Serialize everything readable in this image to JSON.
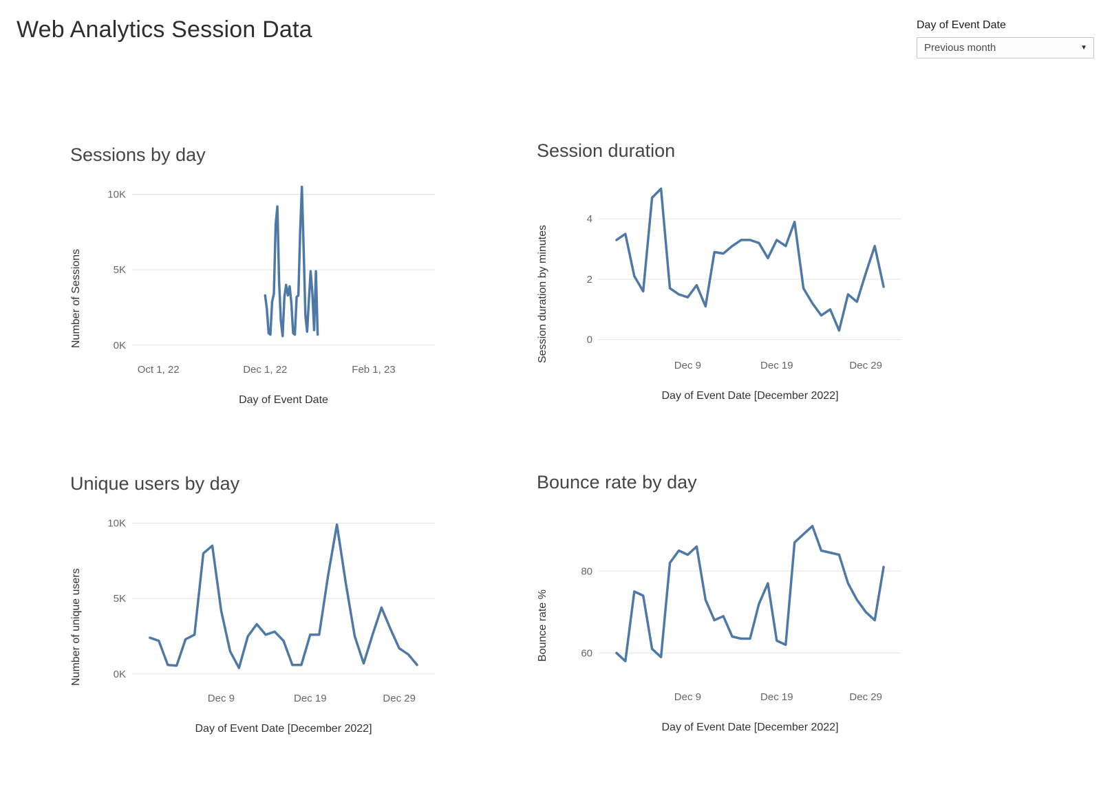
{
  "page": {
    "title": "Web Analytics Session Data"
  },
  "filter": {
    "label": "Day of Event Date",
    "value": "Previous month",
    "caret": "▼"
  },
  "chart_data": [
    {
      "type": "line",
      "title": "Sessions by day",
      "xlabel": "Day of Event Date",
      "ylabel": "Number of Sessions",
      "line_color": "#4e79a7",
      "grid": "horizontal",
      "xlim": [
        -15,
        158
      ],
      "ylim": [
        -600,
        10800
      ],
      "yticks": [
        {
          "v": 0,
          "label": "0K"
        },
        {
          "v": 5000,
          "label": "5K"
        },
        {
          "v": 10000,
          "label": "10K"
        }
      ],
      "xticks": [
        {
          "v": 0,
          "label": "Oct 1, 22"
        },
        {
          "v": 61,
          "label": "Dec 1, 22"
        },
        {
          "v": 123,
          "label": "Feb 1, 23"
        }
      ],
      "x": [
        61,
        62,
        63,
        64,
        65,
        66,
        67,
        68,
        69,
        70,
        71,
        72,
        73,
        74,
        75,
        76,
        77,
        78,
        79,
        80,
        81,
        82,
        83,
        84,
        85,
        86,
        87,
        88,
        89,
        90,
        91
      ],
      "values": [
        3300,
        2400,
        800,
        700,
        2900,
        3400,
        8000,
        9200,
        4200,
        1600,
        600,
        3200,
        4000,
        3300,
        3900,
        2800,
        800,
        700,
        3200,
        3300,
        7500,
        10500,
        6500,
        2000,
        900,
        3000,
        4900,
        3400,
        1000,
        4900,
        700
      ]
    },
    {
      "type": "line",
      "title": "Session duration",
      "xlabel": "Day of Event Date [December 2022]",
      "ylabel": "Session duration by minutes",
      "line_color": "#4e79a7",
      "grid": "horizontal",
      "xlim": [
        -1,
        33
      ],
      "ylim": [
        -0.35,
        5.35
      ],
      "yticks": [
        {
          "v": 0,
          "label": "0"
        },
        {
          "v": 2,
          "label": "2"
        },
        {
          "v": 4,
          "label": "4"
        }
      ],
      "xticks": [
        {
          "v": 9,
          "label": "Dec 9"
        },
        {
          "v": 19,
          "label": "Dec 19"
        },
        {
          "v": 29,
          "label": "Dec 29"
        }
      ],
      "x": [
        1,
        2,
        3,
        4,
        5,
        6,
        7,
        8,
        9,
        10,
        11,
        12,
        13,
        14,
        15,
        16,
        17,
        18,
        19,
        20,
        21,
        22,
        23,
        24,
        25,
        26,
        27,
        28,
        29,
        30,
        31
      ],
      "values": [
        3.3,
        3.5,
        2.1,
        1.6,
        4.7,
        5.0,
        1.7,
        1.5,
        1.4,
        1.8,
        1.1,
        2.9,
        2.85,
        3.1,
        3.3,
        3.3,
        3.2,
        2.7,
        3.3,
        3.1,
        3.9,
        1.7,
        1.2,
        0.8,
        1.0,
        0.3,
        1.5,
        1.25,
        2.2,
        3.1,
        1.75
      ]
    },
    {
      "type": "line",
      "title": "Unique users by day",
      "xlabel": "Day of Event Date [December 2022]",
      "ylabel": "Number of unique users",
      "line_color": "#4e79a7",
      "grid": "horizontal",
      "xlim": [
        -1,
        33
      ],
      "ylim": [
        -600,
        10800
      ],
      "yticks": [
        {
          "v": 0,
          "label": "0K"
        },
        {
          "v": 5000,
          "label": "5K"
        },
        {
          "v": 10000,
          "label": "10K"
        }
      ],
      "xticks": [
        {
          "v": 9,
          "label": "Dec 9"
        },
        {
          "v": 19,
          "label": "Dec 19"
        },
        {
          "v": 29,
          "label": "Dec 29"
        }
      ],
      "x": [
        1,
        2,
        3,
        4,
        5,
        6,
        7,
        8,
        9,
        10,
        11,
        12,
        13,
        14,
        15,
        16,
        17,
        18,
        19,
        20,
        21,
        22,
        23,
        24,
        25,
        26,
        27,
        28,
        29,
        30,
        31
      ],
      "values": [
        2400,
        2200,
        600,
        550,
        2300,
        2600,
        8000,
        8500,
        4200,
        1500,
        400,
        2500,
        3300,
        2600,
        2800,
        2200,
        600,
        600,
        2600,
        2600,
        6500,
        9900,
        6000,
        2500,
        700,
        2600,
        4400,
        3000,
        1700,
        1300,
        600
      ]
    },
    {
      "type": "line",
      "title": "Bounce rate by day",
      "xlabel": "Day of Event Date [December 2022]",
      "ylabel": "Bounce rate %",
      "line_color": "#4e79a7",
      "grid": "horizontal",
      "xlim": [
        -1,
        33
      ],
      "ylim": [
        53,
        95
      ],
      "yticks": [
        {
          "v": 60,
          "label": "60"
        },
        {
          "v": 80,
          "label": "80"
        }
      ],
      "xticks": [
        {
          "v": 9,
          "label": "Dec 9"
        },
        {
          "v": 19,
          "label": "Dec 19"
        },
        {
          "v": 29,
          "label": "Dec 29"
        }
      ],
      "x": [
        1,
        2,
        3,
        4,
        5,
        6,
        7,
        8,
        9,
        10,
        11,
        12,
        13,
        14,
        15,
        16,
        17,
        18,
        19,
        20,
        21,
        22,
        23,
        24,
        25,
        26,
        27,
        28,
        29,
        30,
        31
      ],
      "values": [
        60,
        58,
        75,
        74,
        61,
        59,
        82,
        85,
        84,
        86,
        73,
        68,
        69,
        64,
        63.5,
        63.5,
        72,
        77,
        63,
        62,
        87,
        89,
        91,
        85,
        84.5,
        84,
        77,
        73,
        70,
        68,
        81
      ]
    }
  ]
}
